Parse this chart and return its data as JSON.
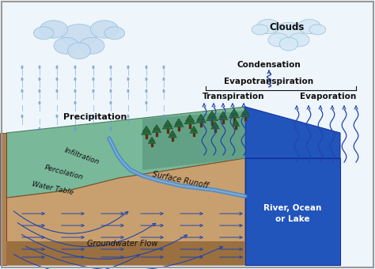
{
  "bg_color": "#f0f4f8",
  "labels": {
    "clouds_right": "Clouds",
    "condensation": "Condensation",
    "evapotranspiration": "Evapotranspiration",
    "transpiration": "Transpiration",
    "evaporation": "Evaporation",
    "precipitation": "Precipitation",
    "infiltration": "Infiltration",
    "percolation": "Percolation",
    "water_table": "Water Table",
    "surface_runoff": "Surface Runoff",
    "groundwater_flow": "Groundwater Flow",
    "river_ocean_lake": "River, Ocean\nor Lake"
  },
  "colors": {
    "sky": "#eef5fb",
    "cloud_rain_fill": "#c8ddf0",
    "cloud_rain_edge": "#8ab8d8",
    "cloud_right_fill": "#d5e8f5",
    "cloud_right_edge": "#90b8d0",
    "land_green": "#7ab89a",
    "land_green2": "#5a9880",
    "land_brown": "#c8a070",
    "land_brown2": "#b08050",
    "water_blue": "#2255bb",
    "water_blue2": "#4488dd",
    "rain_color": "#6699cc",
    "arrow_color": "#2244aa",
    "text_dark": "#111111",
    "stream_blue": "#4488cc",
    "tree_green": "#2a6a3a",
    "tree_dark": "#1a4a28"
  }
}
